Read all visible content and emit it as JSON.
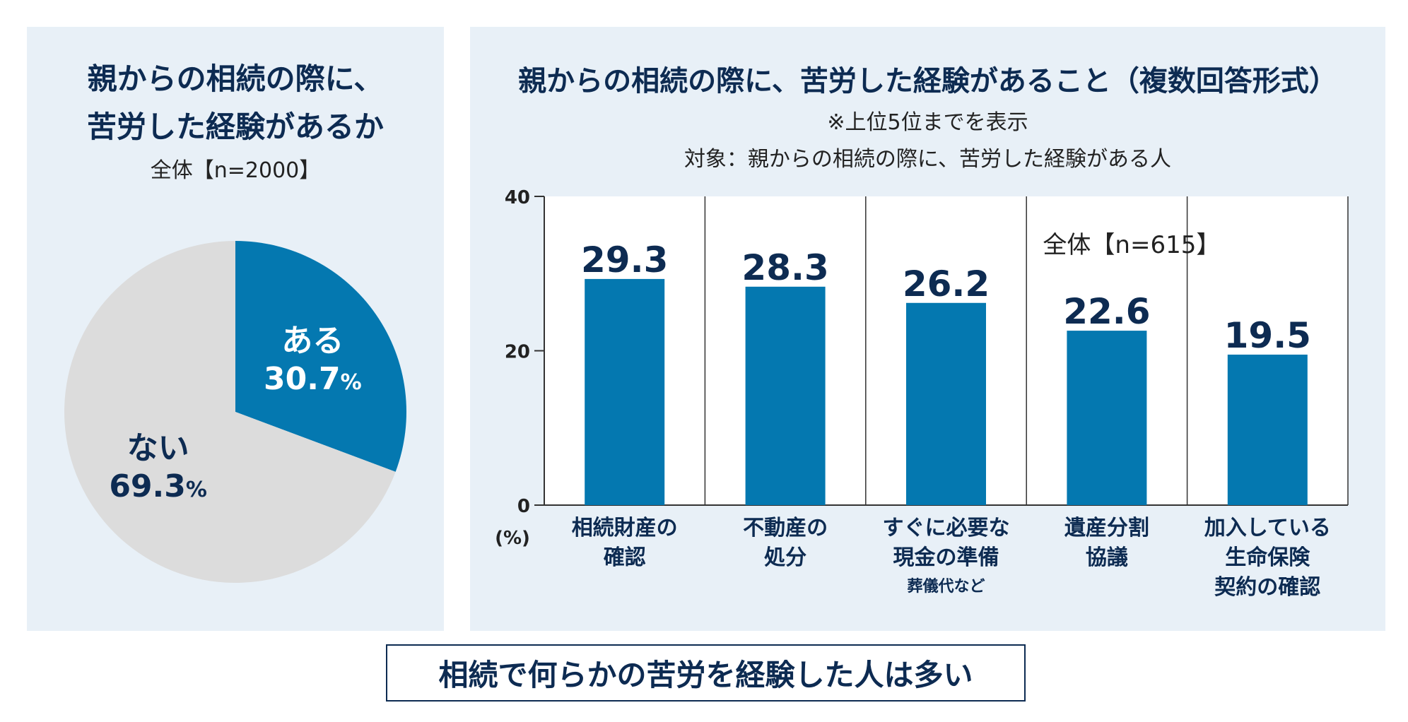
{
  "pie_panel": {
    "title_line1": "親からの相続の際に、",
    "title_line2": "苦労した経験があるか",
    "subtitle": "全体【n=2000】"
  },
  "bar_panel": {
    "title": "親からの相続の際に、苦労した経験があること（複数回答形式）",
    "note": "※上位5位までを表示",
    "target": "対象：親からの相続の際に、苦労した経験がある人",
    "sample": "全体【n=615】"
  },
  "conclusion": "相続で何らかの苦労を経験した人は多い",
  "colors": {
    "accent": "#0478b0",
    "pie_gray": "#dcdcdc",
    "navy": "#0d2b52",
    "panel": "#e8f0f7"
  },
  "chart_data": [
    {
      "type": "pie",
      "slices": [
        {
          "label": "ある",
          "value": 30.7,
          "value_text": "30.7",
          "unit": "%",
          "color": "#0478b0",
          "text_color": "#ffffff"
        },
        {
          "label": "ない",
          "value": 69.3,
          "value_text": "69.3",
          "unit": "%",
          "color": "#dcdcdc",
          "text_color": "#0d2b52"
        }
      ]
    },
    {
      "type": "bar",
      "unit_label": "(%)",
      "ylim": [
        0,
        40
      ],
      "yticks": [
        0,
        20,
        40
      ],
      "categories": [
        {
          "lines": [
            "相続財産の",
            "確認"
          ],
          "note": ""
        },
        {
          "lines": [
            "不動産の",
            "処分"
          ],
          "note": ""
        },
        {
          "lines": [
            "すぐに必要な",
            "現金の準備"
          ],
          "note": "葬儀代など"
        },
        {
          "lines": [
            "遺産分割",
            "協議"
          ],
          "note": ""
        },
        {
          "lines": [
            "加入している",
            "生命保険",
            "契約の確認"
          ],
          "note": ""
        }
      ],
      "values": [
        29.3,
        28.3,
        26.2,
        22.6,
        19.5
      ],
      "value_labels": [
        "29.3",
        "28.3",
        "26.2",
        "22.6",
        "19.5"
      ]
    }
  ]
}
